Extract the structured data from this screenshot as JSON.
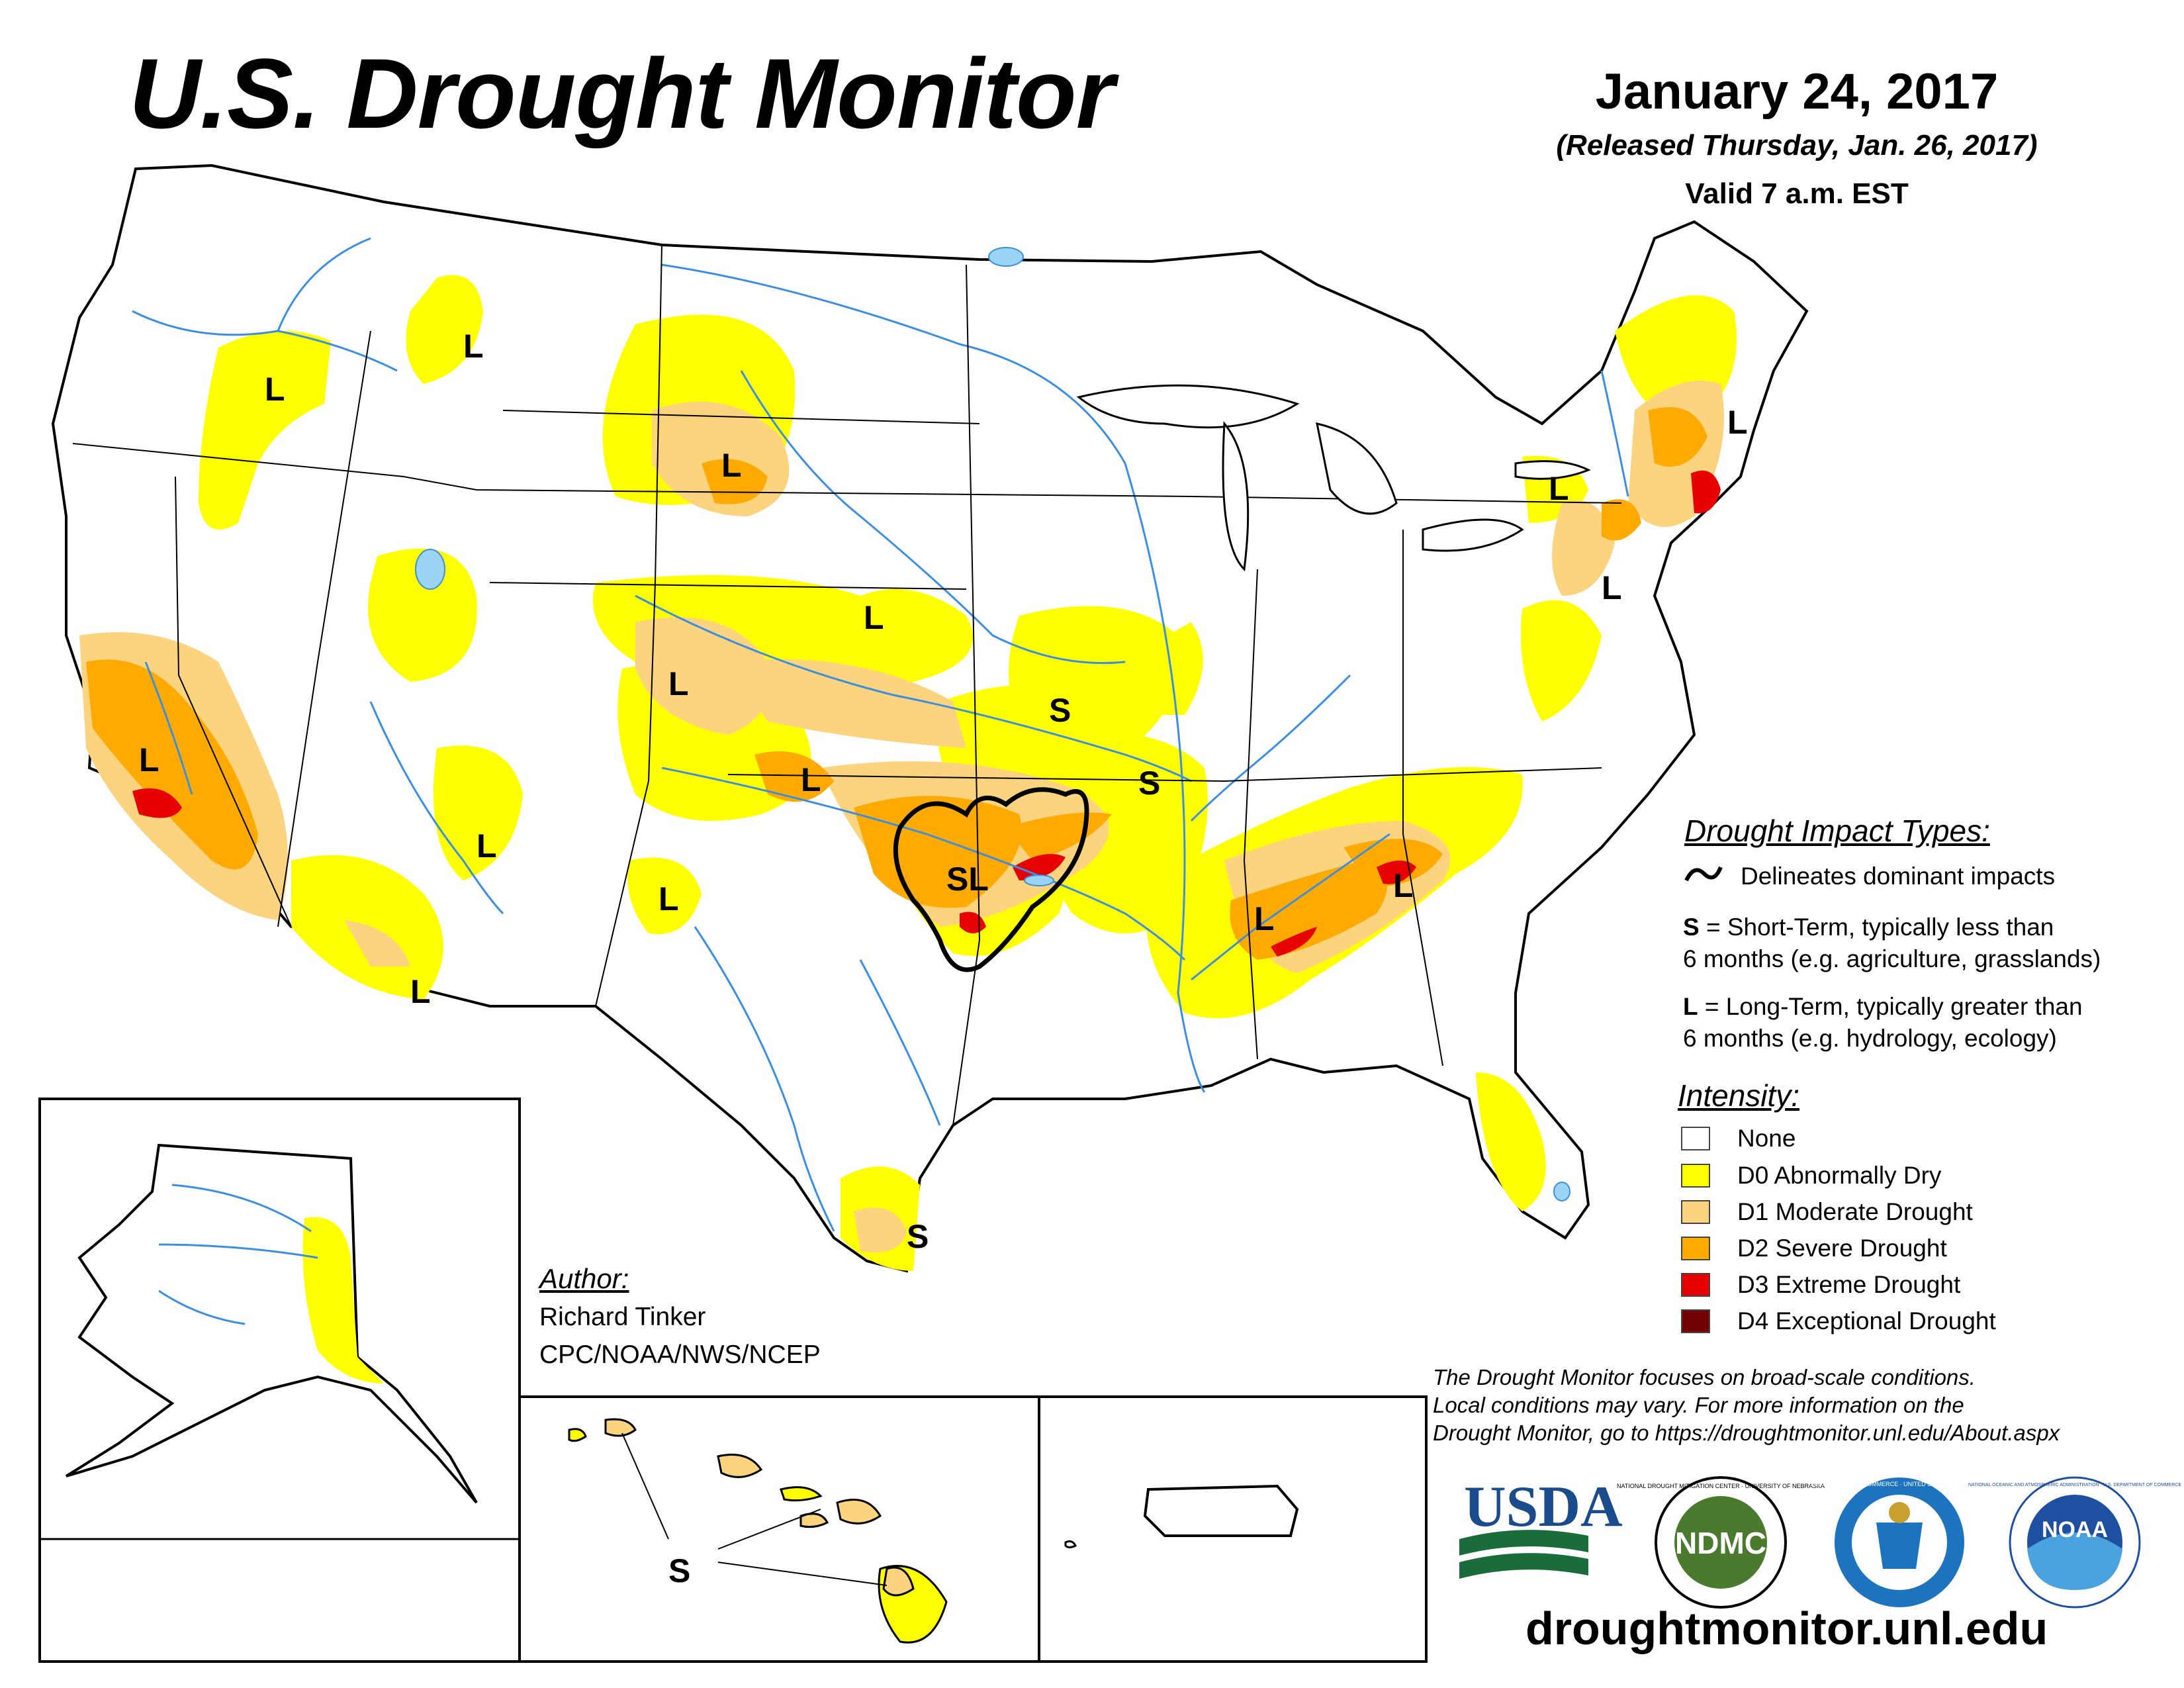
{
  "header": {
    "title": "U.S. Drought Monitor",
    "date": "January 24, 2017",
    "released": "(Released Thursday, Jan. 26, 2017)",
    "valid": "Valid 7 a.m. EST"
  },
  "impact_types": {
    "heading": "Drought Impact Types:",
    "delineates": "Delineates dominant impacts",
    "short_term_key": "S",
    "short_term_line1": " = Short-Term, typically less than",
    "short_term_line2": "6 months (e.g. agriculture, grasslands)",
    "long_term_key": "L",
    "long_term_line1": " = Long-Term, typically greater than",
    "long_term_line2": "6 months (e.g. hydrology, ecology)"
  },
  "intensity": {
    "heading": "Intensity:",
    "items": [
      {
        "label": "None",
        "color": "#ffffff"
      },
      {
        "label": "D0 Abnormally Dry",
        "color": "#ffff00"
      },
      {
        "label": "D1 Moderate Drought",
        "color": "#fcd37f"
      },
      {
        "label": "D2 Severe Drought",
        "color": "#ffaa00"
      },
      {
        "label": "D3 Extreme Drought",
        "color": "#e60000"
      },
      {
        "label": "D4 Exceptional Drought",
        "color": "#730000"
      }
    ]
  },
  "map_labels": {
    "l_oregon": "L",
    "l_idaho": "L",
    "l_wyoming": "L",
    "l_nebraska": "L",
    "l_colorado": "L",
    "l_kansas": "L",
    "s_missouri": "S",
    "s_arkansas": "S",
    "sl_oklahoma": "SL",
    "l_new_mexico": "L",
    "l_arizona": "L",
    "l_az_south": "L",
    "l_california": "L",
    "l_alabama": "L",
    "l_georgia": "L",
    "l_new_york": "L",
    "l_new_england": "L",
    "l_pennsylvania": "L",
    "s_texas": "S",
    "s_hawaii": "S"
  },
  "author": {
    "heading": "Author:",
    "name": "Richard Tinker",
    "org": "CPC/NOAA/NWS/NCEP"
  },
  "footnote": {
    "line1": "The Drought Monitor focuses on broad-scale conditions.",
    "line2": "Local conditions may vary. For more information on the",
    "line3": "Drought Monitor, go to https://droughtmonitor.unl.edu/About.aspx"
  },
  "logos": {
    "usda": "USDA",
    "ndmc": "NDMC",
    "ndmc_ring": "NATIONAL DROUGHT MITIGATION CENTER · UNIVERSITY OF NEBRASKA",
    "commerce_ring": "DEPARTMENT OF COMMERCE · UNITED STATES OF AMERICA",
    "noaa": "NOAA",
    "noaa_ring": "NATIONAL OCEANIC AND ATMOSPHERIC ADMINISTRATION · U.S. DEPARTMENT OF COMMERCE"
  },
  "url": "droughtmonitor.unl.edu"
}
